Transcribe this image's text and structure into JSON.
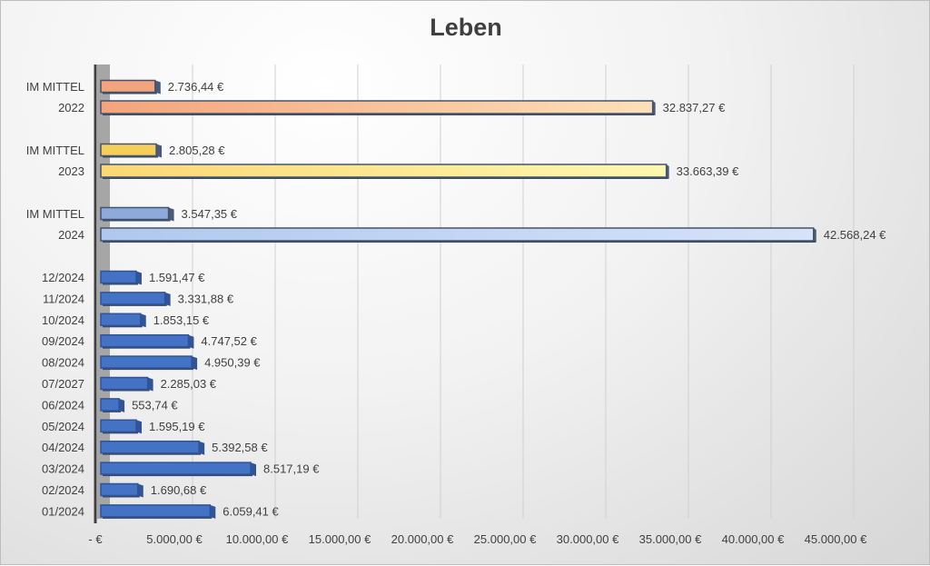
{
  "chart_data": {
    "type": "bar",
    "orientation": "horizontal",
    "title": "Leben",
    "xlabel": "",
    "ylabel": "",
    "xlim": [
      0,
      45000
    ],
    "grid": true,
    "x_ticks": [
      "-  €",
      "5.000,00 €",
      "10.000,00 €",
      "15.000,00 €",
      "20.000,00 €",
      "25.000,00 €",
      "30.000,00 €",
      "35.000,00 €",
      "40.000,00 €",
      "45.000,00 €"
    ],
    "x_tick_values": [
      0,
      5000,
      10000,
      15000,
      20000,
      25000,
      30000,
      35000,
      40000,
      45000
    ],
    "categories": [
      "IM MITTEL",
      "2022",
      "IM MITTEL",
      "2023",
      "IM MITTEL",
      "2024",
      "12/2024",
      "11/2024",
      "10/2024",
      "09/2024",
      "08/2024",
      "07/2027",
      "06/2024",
      "05/2024",
      "04/2024",
      "03/2024",
      "02/2024",
      "01/2024"
    ],
    "values": [
      2736.44,
      32837.27,
      2805.28,
      33663.39,
      3547.35,
      42568.24,
      1591.47,
      3331.88,
      1853.15,
      4747.52,
      4950.39,
      2285.03,
      553.74,
      1595.19,
      5392.58,
      8517.19,
      1690.68,
      6059.41
    ],
    "data_labels": [
      "2.736,44 €",
      "32.837,27 €",
      "2.805,28 €",
      "33.663,39 €",
      "3.547,35 €",
      "42.568,24 €",
      "1.591,47 €",
      "3.331,88 €",
      "1.853,15 €",
      "4.747,52 €",
      "4.950,39 €",
      "2.285,03 €",
      "553,74 €",
      "1.595,19 €",
      "5.392,58 €",
      "8.517,19 €",
      "1.690,68 €",
      "6.059,41 €"
    ],
    "colors": [
      "#f4a47c",
      "#f8c8a0",
      "#f6cf5a",
      "#fbeb9c",
      "#8eaadb",
      "#c6d7f2",
      "#4472c4",
      "#4472c4",
      "#4472c4",
      "#4472c4",
      "#4472c4",
      "#4472c4",
      "#4472c4",
      "#4472c4",
      "#4472c4",
      "#4472c4",
      "#4472c4",
      "#4472c4"
    ]
  }
}
